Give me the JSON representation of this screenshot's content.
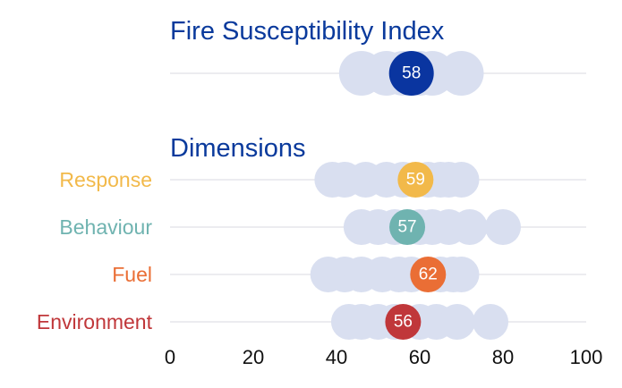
{
  "chart_data": {
    "type": "scatter",
    "title": "Fire Susceptibility Index",
    "section_title": "Dimensions",
    "xlim": [
      0,
      100
    ],
    "xticks": [
      0,
      20,
      40,
      60,
      80,
      100
    ],
    "xtick_labels": [
      "0",
      "20",
      "40",
      "60",
      "80",
      "100"
    ],
    "background_point_color": "#d9dff0",
    "grid_line_color": "#ececf0",
    "index": {
      "name": "Fire Susceptibility Index",
      "value": 58,
      "value_label": "58",
      "color": "#0a35a0",
      "comparison_values": [
        46,
        52,
        56,
        60,
        63,
        70
      ]
    },
    "rows": [
      {
        "name": "Response",
        "value": 59,
        "value_label": "59",
        "color": "#f2b94a",
        "comparison_values": [
          39,
          42,
          47,
          52,
          56,
          62,
          65,
          67,
          70
        ]
      },
      {
        "name": "Behaviour",
        "value": 57,
        "value_label": "57",
        "color": "#6fb3b0",
        "comparison_values": [
          46,
          50,
          54,
          60,
          63,
          67,
          72,
          80
        ]
      },
      {
        "name": "Fuel",
        "value": 62,
        "value_label": "62",
        "color": "#ea6e35",
        "comparison_values": [
          38,
          42,
          46,
          51,
          55,
          58,
          65,
          68,
          70
        ]
      },
      {
        "name": "Environment",
        "value": 56,
        "value_label": "56",
        "color": "#c0373a",
        "comparison_values": [
          43,
          46,
          50,
          54,
          60,
          64,
          69,
          77
        ]
      }
    ]
  }
}
